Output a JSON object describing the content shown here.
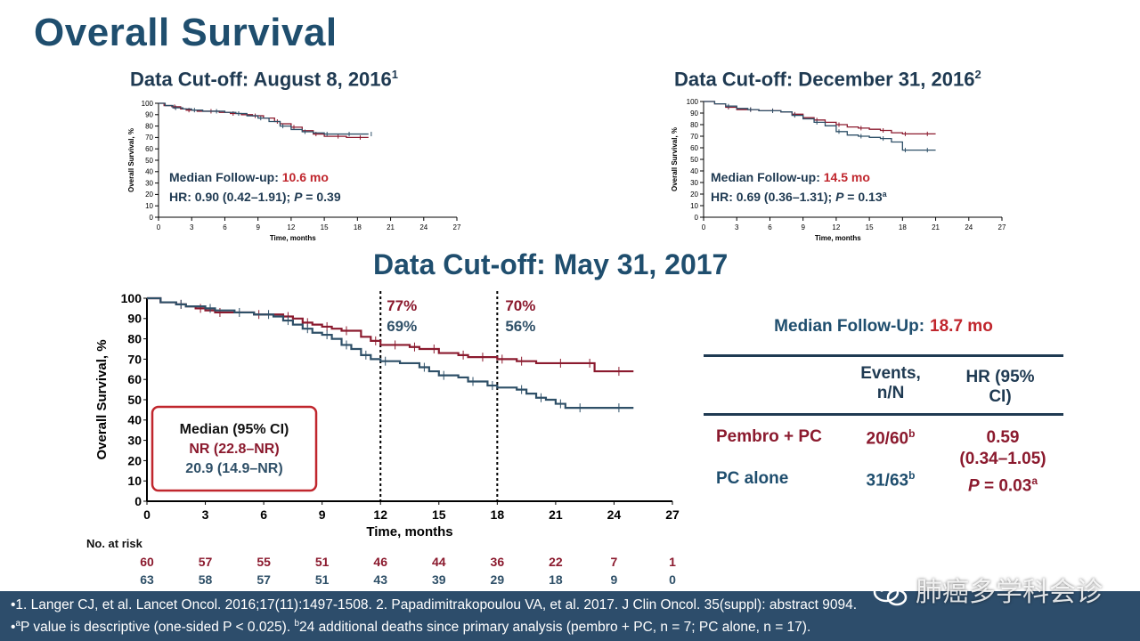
{
  "page": {
    "title": "Overall Survival"
  },
  "panels": {
    "aug2016": {
      "heading": "Data Cut-off: August 8, 2016",
      "heading_ref": "1",
      "followup_label": "Median Follow-up: ",
      "followup_value": "10.6 mo",
      "hr_text": "HR: 0.90 (0.42–1.91); ",
      "p_label": "P",
      "p_value": " = 0.39"
    },
    "dec2016": {
      "heading": "Data Cut-off: December 31, 2016",
      "heading_ref": "2",
      "followup_label": "Median Follow-up: ",
      "followup_value": "14.5 mo",
      "hr_text": "HR: 0.69 (0.36–1.31); ",
      "p_label": "P",
      "p_value": " = 0.13",
      "p_ref": "a"
    },
    "may2017": {
      "heading": "Data Cut-off: May 31, 2017",
      "median_box_title": "Median (95% CI)",
      "median_pembro": "NR (22.8–NR)",
      "median_pc": "20.9 (14.9–NR)",
      "landmark12_pembro": "77%",
      "landmark12_pc": "69%",
      "landmark18_pembro": "70%",
      "landmark18_pc": "56%",
      "at_risk_label": "No. at risk",
      "at_risk_times": [
        0,
        3,
        6,
        9,
        12,
        15,
        18,
        21,
        24,
        27
      ],
      "at_risk_pembro": [
        "60",
        "57",
        "55",
        "51",
        "46",
        "44",
        "36",
        "22",
        "7",
        "1"
      ],
      "at_risk_pc": [
        "63",
        "58",
        "57",
        "51",
        "43",
        "39",
        "29",
        "18",
        "9",
        "0"
      ]
    }
  },
  "summary": {
    "followup_label": "Median Follow-Up:",
    "followup_value": "18.7 mo",
    "col_events_l1": "Events,",
    "col_events_l2": "n/N",
    "col_hr_l1": "HR (95%",
    "col_hr_l2": "CI)",
    "row1_label": "Pembro + PC",
    "row1_events": "20/60",
    "row1_events_ref": "b",
    "row2_label": "PC alone",
    "row2_events": "31/63",
    "row2_events_ref": "b",
    "hr_value": "0.59",
    "hr_ci": "(0.34–1.05)",
    "p_label": "P",
    "p_value": " = 0.03",
    "p_ref": "a"
  },
  "footer": {
    "line1": "•1. Langer CJ, et al. Lancet Oncol. 2016;17(11):1497-1508. 2. Papadimitrakopoulou VA, et al. 2017. J Clin Oncol. 35(suppl): abstract 9094.",
    "line2_a": "•",
    "line2_a_sup": "a",
    "line2_b": "P value is descriptive (one-sided P < 0.025). ",
    "line2_b_sup": "b",
    "line2_c": "24 additional deaths since primary analysis (pembro + PC, n = 7; PC alone, n = 17)."
  },
  "watermark": {
    "text": "肺癌多学科会诊"
  },
  "colors": {
    "pembro": "#8b1a2e",
    "pc": "#2f5068",
    "accent_red": "#c0262d",
    "navy": "#1f4e6e"
  },
  "chart_data": [
    {
      "type": "line",
      "id": "aug2016",
      "xlabel": "Time, months",
      "ylabel": "Overall Survival, %",
      "xlim": [
        0,
        27
      ],
      "ylim": [
        0,
        100
      ],
      "xticks": [
        0,
        3,
        6,
        9,
        12,
        15,
        18,
        21,
        24,
        27
      ],
      "yticks": [
        0,
        10,
        20,
        30,
        40,
        50,
        60,
        70,
        80,
        90,
        100
      ],
      "series": [
        {
          "color": "#8b1a2e",
          "x": [
            0,
            0.5,
            1.2,
            2,
            2.5,
            3.5,
            4.5,
            5.5,
            6.5,
            7.5,
            8.5,
            9.5,
            10.5,
            11,
            12,
            13,
            14,
            15,
            16,
            17,
            18,
            19
          ],
          "y": [
            100,
            98,
            97,
            95,
            94,
            93,
            93,
            92,
            91,
            90,
            89,
            87,
            84,
            82,
            79,
            76,
            73,
            71,
            71,
            70,
            70,
            70
          ]
        },
        {
          "color": "#2f5068",
          "x": [
            0,
            0.6,
            1.3,
            2.2,
            3,
            4,
            5,
            6,
            7,
            8,
            9,
            10,
            11,
            12,
            13,
            14,
            15,
            16,
            17,
            18,
            19
          ],
          "y": [
            100,
            98,
            96,
            95,
            94,
            93,
            93,
            92,
            91,
            89,
            87,
            84,
            80,
            77,
            75,
            74,
            73,
            73,
            73,
            73,
            73
          ]
        }
      ]
    },
    {
      "type": "line",
      "id": "dec2016",
      "xlabel": "Time, months",
      "ylabel": "Overall Survival, %",
      "xlim": [
        0,
        27
      ],
      "ylim": [
        0,
        100
      ],
      "xticks": [
        0,
        3,
        6,
        9,
        12,
        15,
        18,
        21,
        24,
        27
      ],
      "yticks": [
        0,
        10,
        20,
        30,
        40,
        50,
        60,
        70,
        80,
        90,
        100
      ],
      "series": [
        {
          "color": "#8b1a2e",
          "x": [
            0,
            1,
            2,
            3,
            4,
            5,
            6,
            7,
            8,
            9,
            10,
            11,
            12,
            13,
            14,
            15,
            16,
            17,
            18,
            19,
            20,
            21
          ],
          "y": [
            100,
            98,
            95,
            93,
            93,
            92,
            92,
            91,
            89,
            86,
            84,
            82,
            80,
            78,
            77,
            76,
            75,
            73,
            72,
            72,
            72,
            72
          ]
        },
        {
          "color": "#2f5068",
          "x": [
            0,
            1,
            2,
            3,
            4,
            5,
            6,
            7,
            8,
            9,
            10,
            11,
            12,
            13,
            14,
            15,
            16,
            17,
            18,
            19,
            20,
            21
          ],
          "y": [
            100,
            98,
            96,
            94,
            93,
            92,
            92,
            91,
            88,
            85,
            82,
            79,
            74,
            71,
            70,
            69,
            68,
            65,
            58,
            58,
            58,
            58
          ]
        }
      ]
    },
    {
      "type": "line",
      "id": "may2017",
      "xlabel": "Time, months",
      "ylabel": "Overall Survival, %",
      "xlim": [
        0,
        27
      ],
      "ylim": [
        0,
        100
      ],
      "xticks": [
        0,
        3,
        6,
        9,
        12,
        15,
        18,
        21,
        24,
        27
      ],
      "yticks": [
        0,
        10,
        20,
        30,
        40,
        50,
        60,
        70,
        80,
        90,
        100
      ],
      "reference_lines_x": [
        12,
        18
      ],
      "series": [
        {
          "color": "#8b1a2e",
          "x": [
            0,
            0.7,
            1.5,
            2,
            2.5,
            3,
            3.5,
            4.5,
            5.5,
            6.5,
            7,
            7.5,
            8,
            8.5,
            9,
            9.5,
            10,
            11,
            11.5,
            12,
            12.5,
            13,
            13.5,
            14,
            14.5,
            15,
            16,
            16.5,
            17,
            17.5,
            18,
            18.5,
            19,
            20,
            21,
            22,
            22.5,
            23,
            24,
            25
          ],
          "y": [
            100,
            98,
            97,
            96,
            95,
            94,
            93,
            93,
            92,
            92,
            91,
            90,
            88,
            87,
            86,
            85,
            84,
            81,
            79,
            77,
            77,
            77,
            76,
            75,
            75,
            73,
            72,
            71,
            71,
            71,
            70,
            70,
            69,
            68,
            68,
            68,
            68,
            64,
            64,
            64
          ]
        },
        {
          "color": "#2f5068",
          "x": [
            0,
            0.7,
            1.5,
            2,
            3,
            3.5,
            4.5,
            5.5,
            6,
            6.5,
            7,
            7.5,
            8,
            8.5,
            9,
            9.5,
            10,
            10.5,
            11,
            11.5,
            12,
            13,
            14,
            14.5,
            15,
            16,
            16.5,
            17,
            17.5,
            18,
            19,
            19.5,
            20,
            20.5,
            21,
            21.5,
            22,
            23,
            24,
            25
          ],
          "y": [
            100,
            98,
            97,
            96,
            95,
            94,
            93,
            92,
            92,
            91,
            89,
            87,
            85,
            83,
            82,
            80,
            77,
            75,
            72,
            70,
            69,
            68,
            66,
            64,
            62,
            61,
            59,
            59,
            57,
            56,
            55,
            53,
            51,
            50,
            48,
            46,
            46,
            46,
            46,
            46
          ]
        }
      ]
    }
  ]
}
